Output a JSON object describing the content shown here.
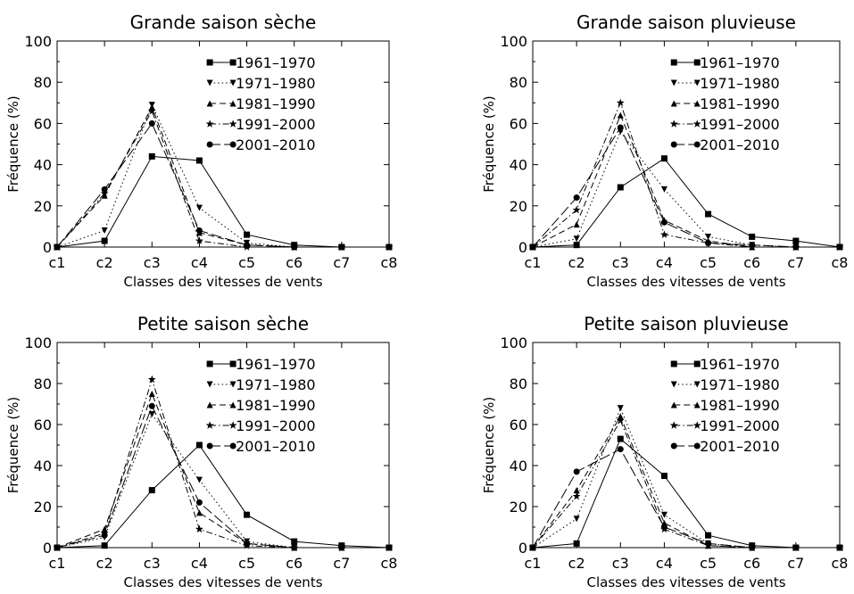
{
  "chart_data": [
    {
      "type": "line",
      "title": "Grande saison sèche",
      "xlabel": "Classes des vitesses de vents",
      "ylabel": "Fréquence (%)",
      "categories": [
        "c1",
        "c2",
        "c3",
        "c4",
        "c5",
        "c6",
        "c7",
        "c8"
      ],
      "ylim": [
        0,
        100
      ],
      "yticks": [
        "0",
        "20",
        "40",
        "60",
        "80",
        "100"
      ],
      "legend_position": "top-right",
      "series": [
        {
          "name": "1961–1970",
          "marker": "square",
          "dash": "solid",
          "values": [
            0,
            3,
            44,
            42,
            6,
            1,
            0,
            0
          ]
        },
        {
          "name": "1971–1980",
          "marker": "triangle-down",
          "dash": "dotted",
          "values": [
            0,
            8,
            69,
            19,
            2,
            0,
            0,
            0
          ]
        },
        {
          "name": "1981–1990",
          "marker": "triangle-up",
          "dash": "dashed",
          "values": [
            0,
            25,
            68,
            7,
            1,
            0,
            0,
            0
          ]
        },
        {
          "name": "1991–2000",
          "marker": "star",
          "dash": "dashdot",
          "values": [
            0,
            26,
            66,
            3,
            0,
            0,
            0,
            0
          ]
        },
        {
          "name": "2001–2010",
          "marker": "circle",
          "dash": "longdash",
          "values": [
            0,
            28,
            60,
            8,
            1,
            0,
            0,
            0
          ]
        }
      ]
    },
    {
      "type": "line",
      "title": "Grande saison pluvieuse",
      "xlabel": "Classes des vitesses de vents",
      "ylabel": "Fréquence (%)",
      "categories": [
        "c1",
        "c2",
        "c3",
        "c4",
        "c5",
        "c6",
        "c7",
        "c8"
      ],
      "ylim": [
        0,
        100
      ],
      "yticks": [
        "0",
        "20",
        "40",
        "60",
        "80",
        "100"
      ],
      "legend_position": "top-right",
      "series": [
        {
          "name": "1961–1970",
          "marker": "square",
          "dash": "solid",
          "values": [
            0,
            1,
            29,
            43,
            16,
            5,
            3,
            0
          ]
        },
        {
          "name": "1971–1980",
          "marker": "triangle-down",
          "dash": "dotted",
          "values": [
            0,
            4,
            56,
            28,
            5,
            1,
            0,
            0
          ]
        },
        {
          "name": "1981–1990",
          "marker": "triangle-up",
          "dash": "dashed",
          "values": [
            0,
            11,
            64,
            13,
            3,
            0,
            0,
            0
          ]
        },
        {
          "name": "1991–2000",
          "marker": "star",
          "dash": "dashdot",
          "values": [
            0,
            18,
            70,
            6,
            2,
            0,
            0,
            0
          ]
        },
        {
          "name": "2001–2010",
          "marker": "circle",
          "dash": "longdash",
          "values": [
            0,
            24,
            58,
            12,
            2,
            1,
            0,
            0
          ]
        }
      ]
    },
    {
      "type": "line",
      "title": "Petite saison sèche",
      "xlabel": "Classes des vitesses de vents",
      "ylabel": "Fréquence (%)",
      "categories": [
        "c1",
        "c2",
        "c3",
        "c4",
        "c5",
        "c6",
        "c7",
        "c8"
      ],
      "ylim": [
        0,
        100
      ],
      "yticks": [
        "0",
        "20",
        "40",
        "60",
        "80",
        "100"
      ],
      "legend_position": "top-right",
      "series": [
        {
          "name": "1961–1970",
          "marker": "square",
          "dash": "solid",
          "values": [
            0,
            1,
            28,
            50,
            16,
            3,
            1,
            0
          ]
        },
        {
          "name": "1971–1980",
          "marker": "triangle-down",
          "dash": "dotted",
          "values": [
            0,
            5,
            65,
            33,
            3,
            0,
            0,
            0
          ]
        },
        {
          "name": "1981–1990",
          "marker": "triangle-up",
          "dash": "dashed",
          "values": [
            0,
            9,
            75,
            17,
            2,
            0,
            0,
            0
          ]
        },
        {
          "name": "1991–2000",
          "marker": "star",
          "dash": "dashdot",
          "values": [
            0,
            7,
            82,
            9,
            1,
            0,
            0,
            0
          ]
        },
        {
          "name": "2001–2010",
          "marker": "circle",
          "dash": "longdash",
          "values": [
            0,
            6,
            69,
            22,
            2,
            0,
            0,
            0
          ]
        }
      ]
    },
    {
      "type": "line",
      "title": "Petite saison pluvieuse",
      "xlabel": "Classes des vitesses de vents",
      "ylabel": "Fréquence (%)",
      "categories": [
        "c1",
        "c2",
        "c3",
        "c4",
        "c5",
        "c6",
        "c7",
        "c8"
      ],
      "ylim": [
        0,
        100
      ],
      "yticks": [
        "0",
        "20",
        "40",
        "60",
        "80",
        "100"
      ],
      "legend_position": "top-right",
      "series": [
        {
          "name": "1961–1970",
          "marker": "square",
          "dash": "solid",
          "values": [
            0,
            2,
            53,
            35,
            6,
            1,
            0,
            0
          ]
        },
        {
          "name": "1971–1980",
          "marker": "triangle-down",
          "dash": "dotted",
          "values": [
            0,
            14,
            68,
            16,
            2,
            0,
            0,
            0
          ]
        },
        {
          "name": "1981–1990",
          "marker": "triangle-up",
          "dash": "dashed",
          "values": [
            0,
            28,
            64,
            12,
            1,
            0,
            0,
            0
          ]
        },
        {
          "name": "1991–2000",
          "marker": "star",
          "dash": "dashdot",
          "values": [
            0,
            25,
            62,
            9,
            1,
            0,
            0,
            0
          ]
        },
        {
          "name": "2001–2010",
          "marker": "circle",
          "dash": "longdash",
          "values": [
            0,
            37,
            48,
            10,
            2,
            0,
            0,
            0
          ]
        }
      ]
    }
  ]
}
